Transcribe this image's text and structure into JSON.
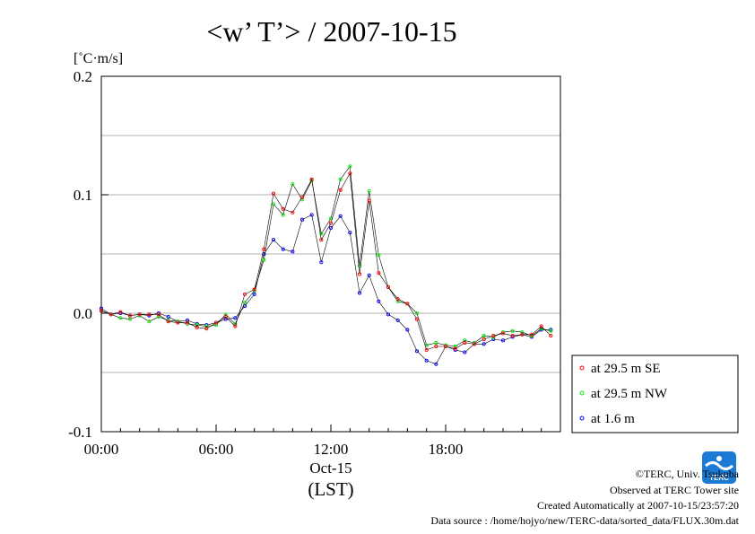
{
  "chart_data": {
    "type": "line",
    "title": "<w’ T’> / 2007-10-15",
    "unit_label": "[˚C·m/s]",
    "ylim": [
      -0.1,
      0.2
    ],
    "y_ticks": [
      {
        "value": 0.2,
        "label": "0.2"
      },
      {
        "value": 0.1,
        "label": "0.1"
      },
      {
        "value": 0.0,
        "label": "0.0"
      },
      {
        "value": -0.1,
        "label": "-0.1"
      }
    ],
    "y_gridlines": [
      0.15,
      0.1,
      0.05,
      0.0,
      -0.05
    ],
    "xlim": [
      0,
      24
    ],
    "x_ticks": [
      {
        "value": 0,
        "label": "00:00"
      },
      {
        "value": 6,
        "label": "06:00"
      },
      {
        "value": 12,
        "label": "12:00"
      },
      {
        "value": 18,
        "label": "18:00"
      }
    ],
    "x_date_label": "Oct-15",
    "x_unit_label": "(LST)",
    "x_hours": [
      0,
      0.5,
      1,
      1.5,
      2,
      2.5,
      3,
      3.5,
      4,
      4.5,
      5,
      5.5,
      6,
      6.5,
      7,
      7.5,
      8,
      8.5,
      9,
      9.5,
      10,
      10.5,
      11,
      11.5,
      12,
      12.5,
      13,
      13.5,
      14,
      14.5,
      15,
      15.5,
      16,
      16.5,
      17,
      17.5,
      18,
      18.5,
      19,
      19.5,
      20,
      20.5,
      21,
      21.5,
      22,
      22.5,
      23,
      23.5
    ],
    "series": [
      {
        "name": "at 29.5 m SE",
        "color": "#ff0000",
        "values": [
          0.002,
          -0.001,
          0.001,
          -0.002,
          -0.001,
          -0.001,
          -0.001,
          -0.007,
          -0.008,
          -0.008,
          -0.012,
          -0.013,
          -0.008,
          -0.003,
          -0.011,
          0.016,
          0.02,
          0.054,
          0.101,
          0.088,
          0.085,
          0.098,
          0.113,
          0.062,
          0.076,
          0.104,
          0.118,
          0.033,
          0.095,
          0.034,
          0.022,
          0.012,
          0.008,
          -0.005,
          -0.031,
          -0.028,
          -0.028,
          -0.03,
          -0.025,
          -0.026,
          -0.022,
          -0.019,
          -0.017,
          -0.019,
          -0.018,
          -0.018,
          -0.011,
          -0.019
        ]
      },
      {
        "name": "at 29.5 m NW",
        "color": "#00ee00",
        "values": [
          0.002,
          -0.001,
          -0.004,
          -0.005,
          -0.002,
          -0.007,
          -0.003,
          -0.006,
          -0.007,
          -0.009,
          -0.01,
          -0.011,
          -0.01,
          -0.001,
          -0.009,
          0.009,
          0.019,
          0.045,
          0.092,
          0.083,
          0.109,
          0.096,
          0.112,
          0.067,
          0.08,
          0.113,
          0.124,
          0.04,
          0.103,
          0.049,
          0.022,
          0.01,
          0.008,
          0.0,
          -0.027,
          -0.025,
          -0.027,
          -0.028,
          -0.023,
          -0.025,
          -0.019,
          -0.02,
          -0.016,
          -0.015,
          -0.016,
          -0.019,
          -0.013,
          -0.015
        ]
      },
      {
        "name": "at 1.6 m",
        "color": "#0000ff",
        "values": [
          0.004,
          -0.001,
          0.0,
          -0.002,
          -0.001,
          -0.002,
          0.0,
          -0.003,
          -0.007,
          -0.006,
          -0.009,
          -0.01,
          -0.008,
          -0.005,
          -0.004,
          0.006,
          0.016,
          0.05,
          0.062,
          0.054,
          0.052,
          0.079,
          0.083,
          0.043,
          0.072,
          0.082,
          0.068,
          0.017,
          0.032,
          0.01,
          -0.001,
          -0.006,
          -0.014,
          -0.032,
          -0.04,
          -0.043,
          -0.028,
          -0.031,
          -0.033,
          -0.026,
          -0.026,
          -0.022,
          -0.023,
          -0.02,
          -0.018,
          -0.02,
          -0.014,
          -0.014
        ]
      }
    ],
    "legend_position": "right"
  },
  "footer": {
    "copyright": "©TERC, Univ. Tsukuba",
    "observed": "Observed at TERC Tower site",
    "created": "Created Automatically at 2007-10-15/23:57:20",
    "source": "Data source : /home/hojyo/new/TERC-data/sorted_data/FLUX.30m.dat"
  },
  "logo": {
    "text": "TERC",
    "color": "#1a7ad4"
  }
}
